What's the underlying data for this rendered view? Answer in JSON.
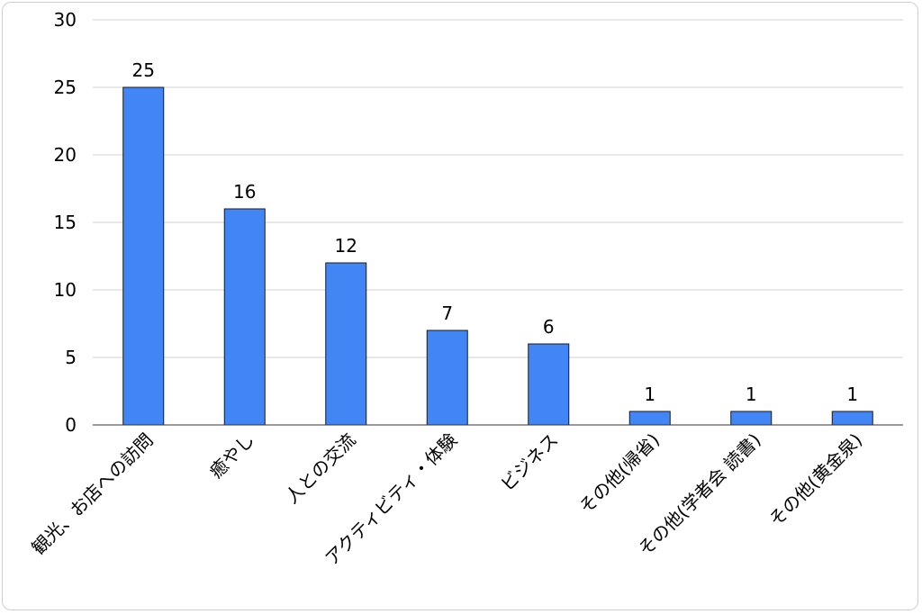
{
  "chart_data": {
    "type": "bar",
    "title": "",
    "xlabel": "",
    "ylabel": "",
    "categories": [
      "観光、お店への訪問",
      "癒やし",
      "人との交流",
      "アクティビティ・体験",
      "ビジネス",
      "その他(帰省)",
      "その他(学者会 読書)",
      "その他(黄金泉)"
    ],
    "values": [
      25,
      16,
      12,
      7,
      6,
      1,
      1,
      1
    ],
    "ylim": [
      0,
      30
    ],
    "yticks": [
      0,
      5,
      10,
      15,
      20,
      25,
      30
    ],
    "grid": true,
    "legend": "none",
    "colors": {
      "bar": "#4285f4",
      "bar_stroke": "#1a1a1a",
      "grid": "#d0d0d0",
      "axis": "#333333"
    }
  }
}
